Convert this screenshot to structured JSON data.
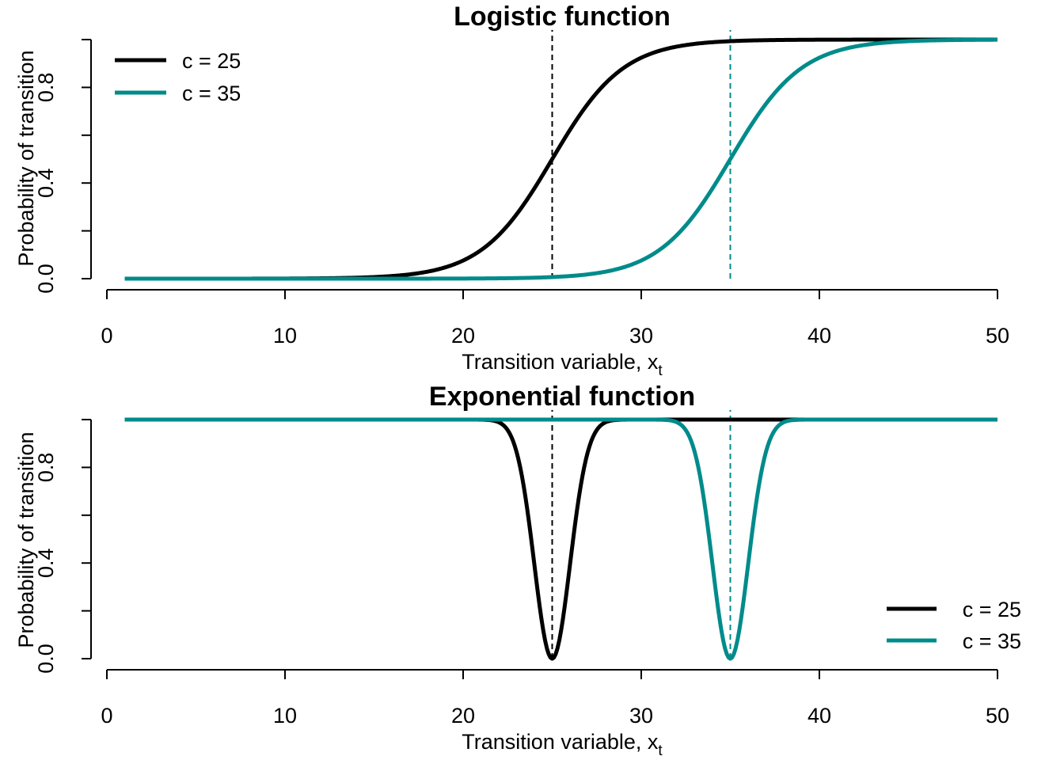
{
  "colors": {
    "c25": "#000000",
    "c35": "#008B8B"
  },
  "chart_data": [
    {
      "type": "line",
      "title": "Logistic function",
      "xlabel": "Transition variable, ",
      "xlabel_sub": "t",
      "xlabel_var": "x",
      "ylabel": "Probability of transition",
      "xlim": [
        0,
        50
      ],
      "ylim": [
        0,
        1
      ],
      "xticks": [
        "0",
        "10",
        "20",
        "30",
        "40",
        "50"
      ],
      "yticks": [
        "0.0",
        "0.4",
        "0.8"
      ],
      "x_range": [
        1,
        50
      ],
      "function": "logistic",
      "gamma": 0.5,
      "legend_position": "top-left",
      "series": [
        {
          "name": "c = 25",
          "c": 25,
          "color": "#000000"
        },
        {
          "name": "c = 35",
          "c": 35,
          "color": "#008B8B"
        }
      ],
      "vlines": [
        25,
        35
      ]
    },
    {
      "type": "line",
      "title": "Exponential function",
      "xlabel": "Transition variable, ",
      "xlabel_sub": "t",
      "xlabel_var": "x",
      "ylabel": "Probability of transition",
      "xlim": [
        0,
        50
      ],
      "ylim": [
        0,
        1
      ],
      "xticks": [
        "0",
        "10",
        "20",
        "30",
        "40",
        "50"
      ],
      "yticks": [
        "0.0",
        "0.4",
        "0.8"
      ],
      "x_range": [
        1,
        50
      ],
      "function": "exponential",
      "gamma": 0.5,
      "legend_position": "bottom-right",
      "series": [
        {
          "name": "c = 25",
          "c": 25,
          "color": "#000000"
        },
        {
          "name": "c = 35",
          "c": 35,
          "color": "#008B8B"
        }
      ],
      "vlines": [
        25,
        35
      ]
    }
  ]
}
